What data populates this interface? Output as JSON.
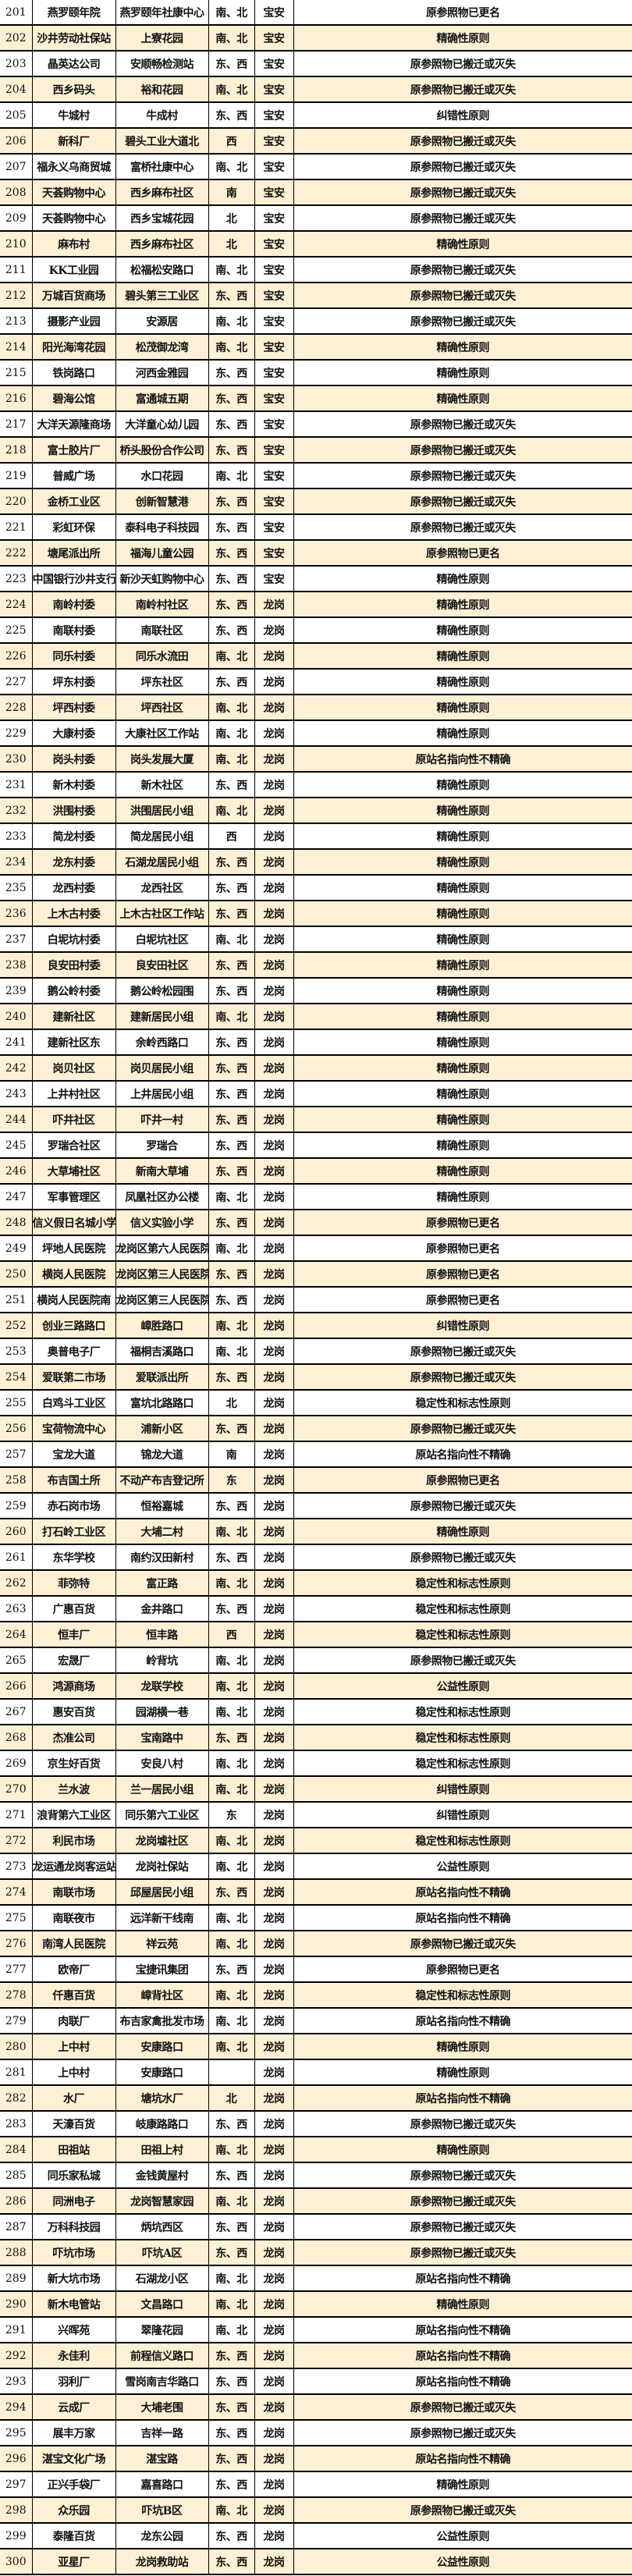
{
  "colors": {
    "row_highlight": "#fdf0d5",
    "grid": "#000000"
  },
  "rows": [
    [
      "201",
      "燕罗颐年院",
      "燕罗颐年社康中心",
      "南、北",
      "宝安",
      "原参照物已更名"
    ],
    [
      "202",
      "沙井劳动社保站",
      "上寮花园",
      "南、北",
      "宝安",
      "精确性原则"
    ],
    [
      "203",
      "晶英达公司",
      "安顺畅检测站",
      "东、西",
      "宝安",
      "原参照物已搬迁或灭失"
    ],
    [
      "204",
      "西乡码头",
      "裕和花园",
      "南、北",
      "宝安",
      "原参照物已搬迁或灭失"
    ],
    [
      "205",
      "牛城村",
      "牛成村",
      "东、西",
      "宝安",
      "纠错性原则"
    ],
    [
      "206",
      "新科厂",
      "碧头工业大道北",
      "西",
      "宝安",
      "原参照物已搬迁或灭失"
    ],
    [
      "207",
      "福永义乌商贸城",
      "富桥社康中心",
      "南、北",
      "宝安",
      "原参照物已搬迁或灭失"
    ],
    [
      "208",
      "天荟购物中心",
      "西乡麻布社区",
      "南",
      "宝安",
      "原参照物已搬迁或灭失"
    ],
    [
      "209",
      "天荟购物中心",
      "西乡宝城花园",
      "北",
      "宝安",
      "原参照物已搬迁或灭失"
    ],
    [
      "210",
      "麻布村",
      "西乡麻布社区",
      "北",
      "宝安",
      "精确性原则"
    ],
    [
      "211",
      "KK工业园",
      "松福松安路口",
      "南、北",
      "宝安",
      "原参照物已搬迁或灭失"
    ],
    [
      "212",
      "万城百货商场",
      "碧头第三工业区",
      "东、西",
      "宝安",
      "原参照物已搬迁或灭失"
    ],
    [
      "213",
      "摄影产业园",
      "安源居",
      "南、北",
      "宝安",
      "原参照物已搬迁或灭失"
    ],
    [
      "214",
      "阳光海湾花园",
      "松茂御龙湾",
      "南、北",
      "宝安",
      "精确性原则"
    ],
    [
      "215",
      "铁岗路口",
      "河西金雅园",
      "东、西",
      "宝安",
      "精确性原则"
    ],
    [
      "216",
      "碧海公馆",
      "富通城五期",
      "东、西",
      "宝安",
      "精确性原则"
    ],
    [
      "217",
      "大洋天源隆商场",
      "大洋童心幼儿园",
      "东、西",
      "宝安",
      "原参照物已搬迁或灭失"
    ],
    [
      "218",
      "富士胶片厂",
      "桥头股份合作公司",
      "东、西",
      "宝安",
      "原参照物已搬迁或灭失"
    ],
    [
      "219",
      "普威广场",
      "水口花园",
      "南、北",
      "宝安",
      "原参照物已搬迁或灭失"
    ],
    [
      "220",
      "金桥工业区",
      "创新智慧港",
      "东、西",
      "宝安",
      "原参照物已搬迁或灭失"
    ],
    [
      "221",
      "彩虹环保",
      "泰科电子科技园",
      "东、西",
      "宝安",
      "原参照物已搬迁或灭失"
    ],
    [
      "222",
      "塘尾派出所",
      "福海儿童公园",
      "东、西",
      "宝安",
      "原参照物已更名"
    ],
    [
      "223",
      "中国银行沙井支行",
      "新沙天虹购物中心",
      "东、西",
      "宝安",
      "精确性原则"
    ],
    [
      "224",
      "南岭村委",
      "南岭村社区",
      "东、西",
      "龙岗",
      "精确性原则"
    ],
    [
      "225",
      "南联村委",
      "南联社区",
      "东、西",
      "龙岗",
      "精确性原则"
    ],
    [
      "226",
      "同乐村委",
      "同乐水流田",
      "南、北",
      "龙岗",
      "精确性原则"
    ],
    [
      "227",
      "坪东村委",
      "坪东社区",
      "东、西",
      "龙岗",
      "精确性原则"
    ],
    [
      "228",
      "坪西村委",
      "坪西社区",
      "南、北",
      "龙岗",
      "精确性原则"
    ],
    [
      "229",
      "大康村委",
      "大康社区工作站",
      "南、北",
      "龙岗",
      "精确性原则"
    ],
    [
      "230",
      "岗头村委",
      "岗头发展大厦",
      "南、北",
      "龙岗",
      "原站名指向性不精确"
    ],
    [
      "231",
      "新木村委",
      "新木社区",
      "东、西",
      "龙岗",
      "精确性原则"
    ],
    [
      "232",
      "洪围村委",
      "洪围居民小组",
      "南、北",
      "龙岗",
      "精确性原则"
    ],
    [
      "233",
      "简龙村委",
      "简龙居民小组",
      "西",
      "龙岗",
      "精确性原则"
    ],
    [
      "234",
      "龙东村委",
      "石湖龙居民小组",
      "东、西",
      "龙岗",
      "精确性原则"
    ],
    [
      "235",
      "龙西村委",
      "龙西社区",
      "东、西",
      "龙岗",
      "精确性原则"
    ],
    [
      "236",
      "上木古村委",
      "上木古社区工作站",
      "东、西",
      "龙岗",
      "精确性原则"
    ],
    [
      "237",
      "白坭坑村委",
      "白坭坑社区",
      "南、北",
      "龙岗",
      "精确性原则"
    ],
    [
      "238",
      "良安田村委",
      "良安田社区",
      "东、西",
      "龙岗",
      "精确性原则"
    ],
    [
      "239",
      "鹅公岭村委",
      "鹅公岭松园围",
      "东、西",
      "龙岗",
      "精确性原则"
    ],
    [
      "240",
      "建新社区",
      "建新居民小组",
      "南、北",
      "龙岗",
      "精确性原则"
    ],
    [
      "241",
      "建新社区东",
      "余岭西路口",
      "东、西",
      "龙岗",
      "精确性原则"
    ],
    [
      "242",
      "岗贝社区",
      "岗贝居民小组",
      "东、西",
      "龙岗",
      "精确性原则"
    ],
    [
      "243",
      "上井村社区",
      "上井居民小组",
      "东、西",
      "龙岗",
      "精确性原则"
    ],
    [
      "244",
      "吓井社区",
      "吓井一村",
      "东、西",
      "龙岗",
      "精确性原则"
    ],
    [
      "245",
      "罗瑞合社区",
      "罗瑞合",
      "东、西",
      "龙岗",
      "精确性原则"
    ],
    [
      "246",
      "大草埔社区",
      "新南大草埔",
      "东、西",
      "龙岗",
      "精确性原则"
    ],
    [
      "247",
      "军事管理区",
      "凤凰社区办公楼",
      "南、北",
      "龙岗",
      "精确性原则"
    ],
    [
      "248",
      "信义假日名城小学",
      "信义实验小学",
      "东、西",
      "龙岗",
      "原参照物已更名"
    ],
    [
      "249",
      "坪地人民医院",
      "龙岗区第六人民医院",
      "南、北",
      "龙岗",
      "原参照物已更名"
    ],
    [
      "250",
      "横岗人民医院",
      "龙岗区第三人民医院",
      "东、西",
      "龙岗",
      "原参照物已更名"
    ],
    [
      "251",
      "横岗人民医院南",
      "龙岗区第三人民医院南",
      "东、西",
      "龙岗",
      "原参照物已更名"
    ],
    [
      "252",
      "创业三路路口",
      "嶂胜路口",
      "南、北",
      "龙岗",
      "纠错性原则"
    ],
    [
      "253",
      "奥普电子厂",
      "福桐吉溪路口",
      "南、北",
      "龙岗",
      "原参照物已搬迁或灭失"
    ],
    [
      "254",
      "爱联第二市场",
      "爱联派出所",
      "东、西",
      "龙岗",
      "原参照物已搬迁或灭失"
    ],
    [
      "255",
      "白鸡斗工业区",
      "富坑北路路口",
      "北",
      "龙岗",
      "稳定性和标志性原则"
    ],
    [
      "256",
      "宝荷物流中心",
      "浦新小区",
      "东、西",
      "龙岗",
      "原参照物已搬迁或灭失"
    ],
    [
      "257",
      "宝龙大道",
      "锦龙大道",
      "南",
      "龙岗",
      "原站名指向性不精确"
    ],
    [
      "258",
      "布吉国土所",
      "不动产布吉登记所",
      "东",
      "龙岗",
      "原参照物已更名"
    ],
    [
      "259",
      "赤石岗市场",
      "恒裕嘉城",
      "东、西",
      "龙岗",
      "原参照物已搬迁或灭失"
    ],
    [
      "260",
      "打石岭工业区",
      "大埔二村",
      "南、北",
      "龙岗",
      "精确性原则"
    ],
    [
      "261",
      "东华学校",
      "南约汉田新村",
      "东、西",
      "龙岗",
      "原参照物已搬迁或灭失"
    ],
    [
      "262",
      "菲弥特",
      "富正路",
      "南、北",
      "龙岗",
      "稳定性和标志性原则"
    ],
    [
      "263",
      "广惠百货",
      "金井路口",
      "东、西",
      "龙岗",
      "稳定性和标志性原则"
    ],
    [
      "264",
      "恒丰厂",
      "恒丰路",
      "西",
      "龙岗",
      "稳定性和标志性原则"
    ],
    [
      "265",
      "宏晟厂",
      "岭背坑",
      "南、北",
      "龙岗",
      "原参照物已搬迁或灭失"
    ],
    [
      "266",
      "鸿源商场",
      "龙联学校",
      "南、北",
      "龙岗",
      "公益性原则"
    ],
    [
      "267",
      "惠安百货",
      "园湖横一巷",
      "南、北",
      "龙岗",
      "稳定性和标志性原则"
    ],
    [
      "268",
      "杰准公司",
      "宝南路中",
      "东、西",
      "龙岗",
      "稳定性和标志性原则"
    ],
    [
      "269",
      "京生好百货",
      "安良八村",
      "南、北",
      "龙岗",
      "稳定性和标志性原则"
    ],
    [
      "270",
      "兰水波",
      "兰一居民小组",
      "南、北",
      "龙岗",
      "纠错性原则"
    ],
    [
      "271",
      "浪背第六工业区",
      "同乐第六工业区",
      "东",
      "龙岗",
      "纠错性原则"
    ],
    [
      "272",
      "利民市场",
      "龙岗墟社区",
      "南、北",
      "龙岗",
      "稳定性和标志性原则"
    ],
    [
      "273",
      "龙运通龙岗客运站",
      "龙岗社保站",
      "南、北",
      "龙岗",
      "公益性原则"
    ],
    [
      "274",
      "南联市场",
      "邱屋居民小组",
      "东、西",
      "龙岗",
      "原站名指向性不精确"
    ],
    [
      "275",
      "南联夜市",
      "远洋新干线南",
      "南、北",
      "龙岗",
      "原站名指向性不精确"
    ],
    [
      "276",
      "南湾人民医院",
      "祥云苑",
      "南、北",
      "龙岗",
      "原参照物已搬迁或灭失"
    ],
    [
      "277",
      "欧帝厂",
      "宝捷讯集团",
      "东、西",
      "龙岗",
      "原参照物已更名"
    ],
    [
      "278",
      "仟惠百货",
      "嶂背社区",
      "南、北",
      "龙岗",
      "稳定性和标志性原则"
    ],
    [
      "279",
      "肉联厂",
      "布吉家禽批发市场",
      "南、北",
      "龙岗",
      "原站名指向性不精确"
    ],
    [
      "280",
      "上中村",
      "安康路口",
      "南、北",
      "龙岗",
      "精确性原则"
    ],
    [
      "281",
      "上中村",
      "安康路口",
      "",
      "龙岗",
      "精确性原则"
    ],
    [
      "282",
      "水厂",
      "塘坑水厂",
      "北",
      "龙岗",
      "原站名指向性不精确"
    ],
    [
      "283",
      "天濠百货",
      "岐康路路口",
      "东、西",
      "龙岗",
      "原参照物已搬迁或灭失"
    ],
    [
      "284",
      "田祖站",
      "田祖上村",
      "南、北",
      "龙岗",
      "精确性原则"
    ],
    [
      "285",
      "同乐家私城",
      "金钱黄屋村",
      "东、西",
      "龙岗",
      "原参照物已搬迁或灭失"
    ],
    [
      "286",
      "同洲电子",
      "龙岗智慧家园",
      "南、北",
      "龙岗",
      "原参照物已搬迁或灭失"
    ],
    [
      "287",
      "万科科技园",
      "炳坑西区",
      "东、西",
      "龙岗",
      "原参照物已搬迁或灭失"
    ],
    [
      "288",
      "吓坑市场",
      "吓坑A区",
      "东、西",
      "龙岗",
      "原参照物已搬迁或灭失"
    ],
    [
      "289",
      "新大坑市场",
      "石湖龙小区",
      "南、北",
      "龙岗",
      "原站名指向性不精确"
    ],
    [
      "290",
      "新木电管站",
      "文昌路口",
      "南、北",
      "龙岗",
      "精确性原则"
    ],
    [
      "291",
      "兴晖苑",
      "翠隆花园",
      "南、北",
      "龙岗",
      "原站名指向性不精确"
    ],
    [
      "292",
      "永佳利",
      "前程信义路口",
      "东、西",
      "龙岗",
      "原站名指向性不精确"
    ],
    [
      "293",
      "羽利厂",
      "雪岗南吉华路口",
      "东、西",
      "龙岗",
      "原站名指向性不精确"
    ],
    [
      "294",
      "云成厂",
      "大埔老围",
      "东、西",
      "龙岗",
      "原参照物已搬迁或灭失"
    ],
    [
      "295",
      "展丰万家",
      "吉祥一路",
      "东、西",
      "龙岗",
      "原参照物已搬迁或灭失"
    ],
    [
      "296",
      "湛宝文化广场",
      "湛宝路",
      "东、西",
      "龙岗",
      "原站名指向性不精确"
    ],
    [
      "297",
      "正兴手袋厂",
      "嘉喜路口",
      "东、西",
      "龙岗",
      "精确性原则"
    ],
    [
      "298",
      "众乐园",
      "吓坑B区",
      "南、北",
      "龙岗",
      "原参照物已搬迁或灭失"
    ],
    [
      "299",
      "泰隆百货",
      "龙东公园",
      "东、西",
      "龙岗",
      "公益性原则"
    ],
    [
      "300",
      "亚星厂",
      "龙岗救助站",
      "东、西",
      "龙岗",
      "公益性原则"
    ]
  ]
}
